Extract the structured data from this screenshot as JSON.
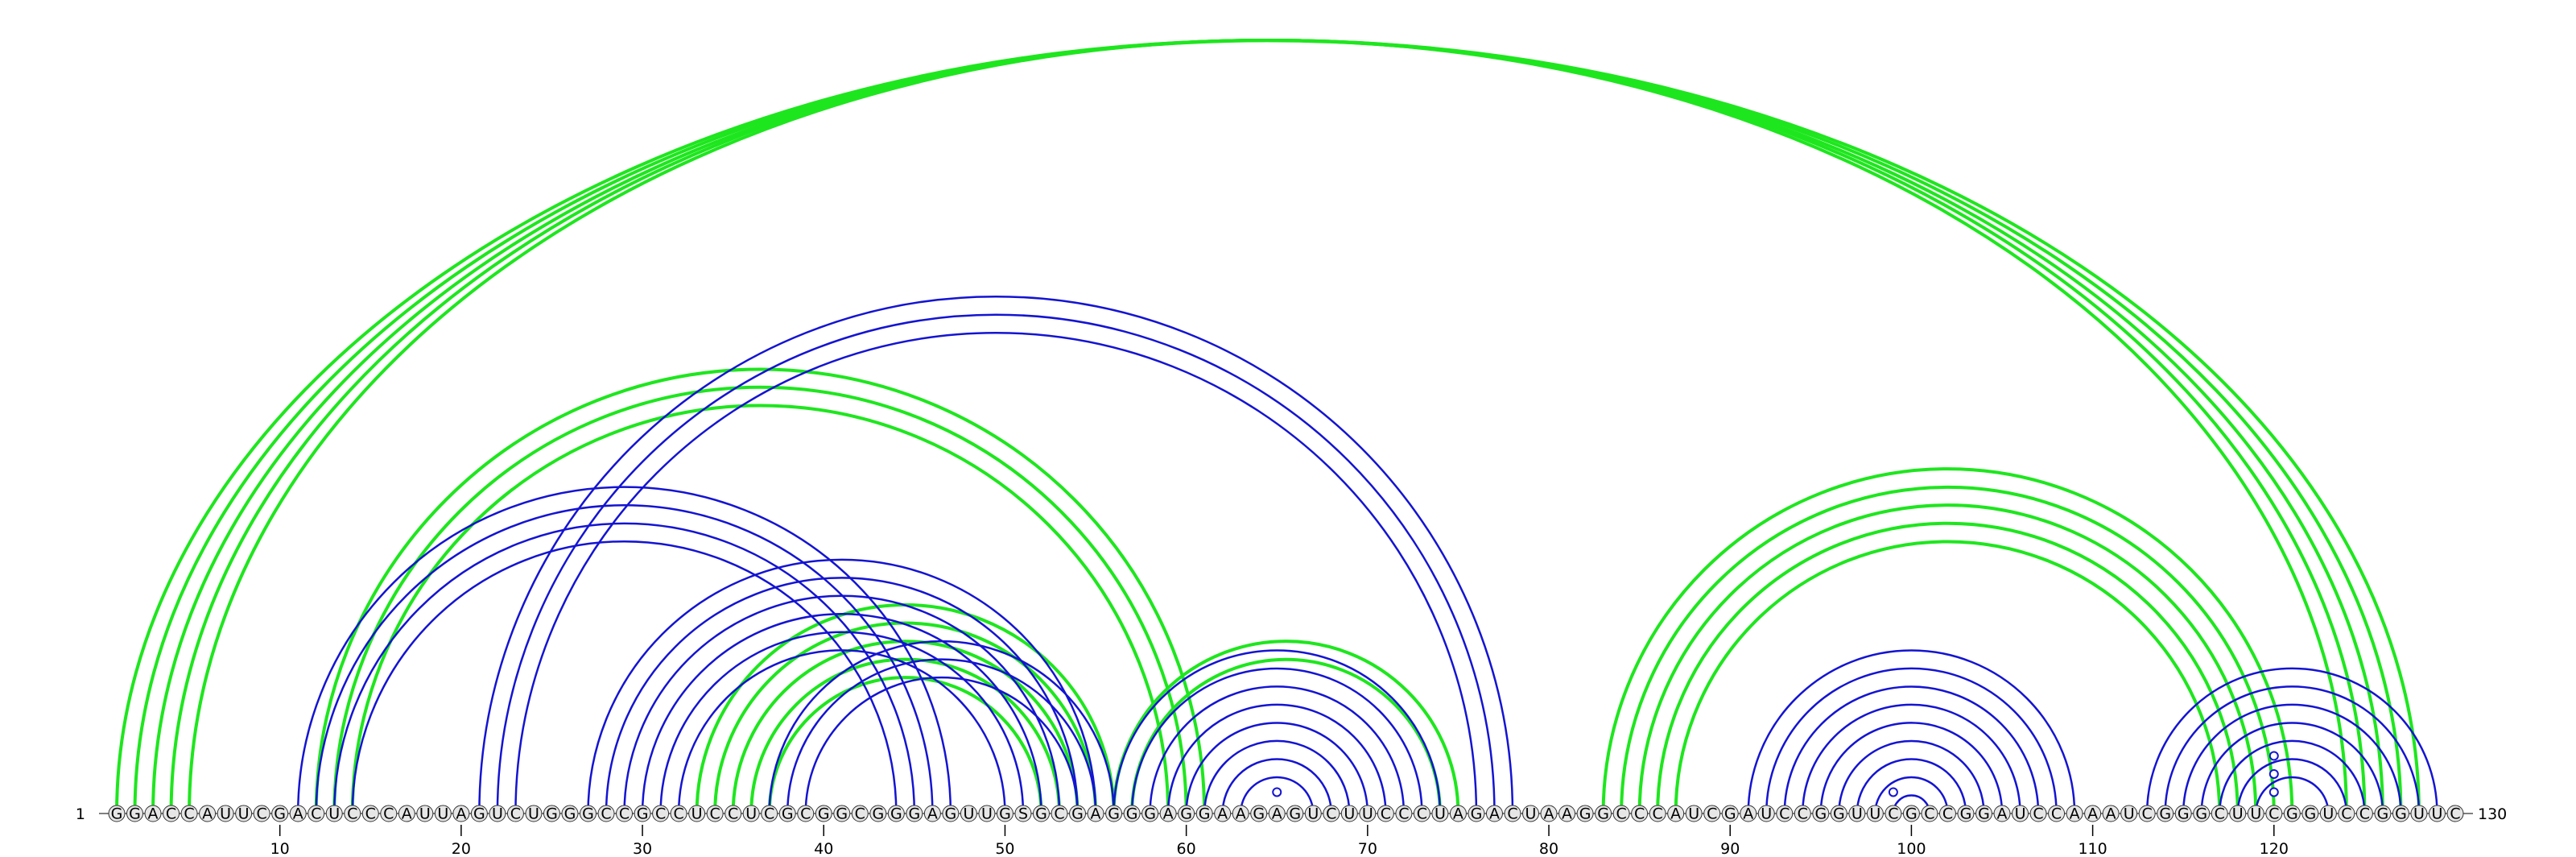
{
  "diagram": {
    "sequence": "GGACCAUUCGACUCCCAUUAGUCUGGGCCGCCUCCUCGCGGCGGGAGUUGSGCGAGGGAGGAAGAGUCUUCCCUAGACUAAGGCCCAUCGAUCCGGUUCGCCGGAUCCAAAUCGGGCUUCGGUCCGGUUC",
    "start_label": "1",
    "end_label": "130",
    "tick_labels": [
      "10",
      "20",
      "30",
      "40",
      "50",
      "60",
      "70",
      "80",
      "90",
      "100",
      "110",
      "120"
    ],
    "colors": {
      "green": "#1ee61e",
      "blue": "#1414d2",
      "circle_fill": "#e6e6e6",
      "circle_stroke": "#333333"
    },
    "arc_groups": [
      {
        "color": "green",
        "pairs": [
          [
            1,
            128
          ],
          [
            2,
            127
          ],
          [
            3,
            126
          ],
          [
            4,
            125
          ],
          [
            5,
            124
          ]
        ]
      },
      {
        "color": "green",
        "pairs": [
          [
            12,
            61
          ],
          [
            13,
            60
          ],
          [
            14,
            59
          ]
        ]
      },
      {
        "color": "green",
        "pairs": [
          [
            33,
            56
          ],
          [
            34,
            55
          ],
          [
            35,
            54
          ],
          [
            36,
            53
          ],
          [
            37,
            52
          ]
        ]
      },
      {
        "color": "green",
        "pairs": [
          [
            56,
            75
          ],
          [
            57,
            74
          ]
        ]
      },
      {
        "color": "green",
        "pairs": [
          [
            83,
            121
          ],
          [
            84,
            120
          ],
          [
            85,
            119
          ],
          [
            86,
            118
          ],
          [
            87,
            117
          ]
        ]
      },
      {
        "color": "blue",
        "pairs": [
          [
            11,
            47
          ],
          [
            12,
            46
          ],
          [
            13,
            45
          ],
          [
            14,
            44
          ]
        ]
      },
      {
        "color": "blue",
        "pairs": [
          [
            21,
            78
          ],
          [
            22,
            77
          ],
          [
            23,
            76
          ]
        ]
      },
      {
        "color": "blue",
        "pairs": [
          [
            27,
            55
          ],
          [
            28,
            54
          ],
          [
            29,
            53
          ],
          [
            30,
            52
          ],
          [
            31,
            51
          ],
          [
            32,
            50
          ]
        ]
      },
      {
        "color": "blue",
        "pairs": [
          [
            37,
            56
          ],
          [
            38,
            55
          ],
          [
            39,
            54
          ]
        ]
      },
      {
        "color": "blue",
        "pairs": [
          [
            56,
            74
          ],
          [
            57,
            73
          ],
          [
            58,
            72
          ],
          [
            59,
            71
          ],
          [
            60,
            70
          ],
          [
            61,
            69
          ],
          [
            62,
            68
          ],
          [
            63,
            67
          ]
        ]
      },
      {
        "color": "blue",
        "pairs": [
          [
            91,
            109
          ],
          [
            92,
            108
          ],
          [
            93,
            107
          ],
          [
            94,
            106
          ],
          [
            95,
            105
          ],
          [
            96,
            104
          ],
          [
            97,
            103
          ],
          [
            98,
            102
          ],
          [
            99,
            101
          ]
        ]
      },
      {
        "color": "blue",
        "pairs": [
          [
            113,
            129
          ],
          [
            114,
            128
          ],
          [
            115,
            127
          ],
          [
            116,
            126
          ],
          [
            117,
            125
          ],
          [
            118,
            124
          ],
          [
            119,
            123
          ]
        ]
      }
    ],
    "noncanonical_pairs": [
      [
        64,
        66
      ],
      [
        98,
        100
      ],
      [
        119,
        121
      ],
      [
        118,
        122
      ],
      [
        117,
        123
      ]
    ]
  }
}
